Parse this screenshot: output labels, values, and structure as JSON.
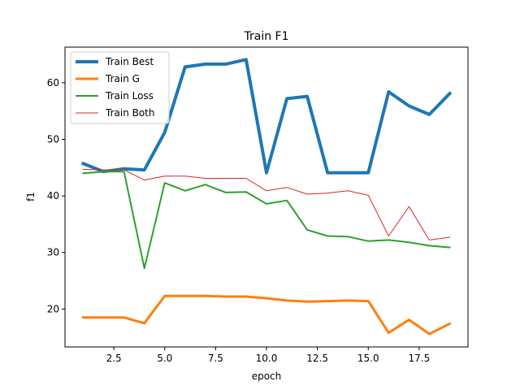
{
  "chart_data": {
    "type": "line",
    "title": "Train F1",
    "xlabel": "epoch",
    "ylabel": "f1",
    "xlim": [
      0.1,
      19.9
    ],
    "ylim": [
      13.3,
      66.3
    ],
    "xticks": [
      2.5,
      5.0,
      7.5,
      10.0,
      12.5,
      15.0,
      17.5
    ],
    "xtick_labels": [
      "2.5",
      "5.0",
      "7.5",
      "10.0",
      "12.5",
      "15.0",
      "17.5"
    ],
    "yticks": [
      20,
      30,
      40,
      50,
      60
    ],
    "ytick_labels": [
      "20",
      "30",
      "40",
      "50",
      "60"
    ],
    "grid": false,
    "legend_position": "top-left",
    "x": [
      1,
      2,
      3,
      4,
      5,
      6,
      7,
      8,
      9,
      10,
      11,
      12,
      13,
      14,
      15,
      16,
      17,
      18,
      19
    ],
    "series": [
      {
        "name": "Train Best",
        "color": "#1f77b4",
        "width": 4,
        "values": [
          45.7,
          44.3,
          44.8,
          44.6,
          51.2,
          62.8,
          63.3,
          63.3,
          64.1,
          44.1,
          57.2,
          57.6,
          44.1,
          44.1,
          44.1,
          58.4,
          55.9,
          54.4,
          58.1
        ]
      },
      {
        "name": "Train G",
        "color": "#ff7f0e",
        "width": 3,
        "values": [
          18.5,
          18.5,
          18.5,
          17.5,
          22.3,
          22.3,
          22.3,
          22.2,
          22.2,
          21.9,
          21.5,
          21.3,
          21.4,
          21.5,
          21.4,
          15.8,
          18.1,
          15.6,
          17.4
        ]
      },
      {
        "name": "Train Loss",
        "color": "#2ca02c",
        "width": 2,
        "values": [
          44.0,
          44.3,
          44.3,
          27.2,
          42.3,
          40.9,
          42.0,
          40.6,
          40.7,
          38.6,
          39.2,
          34.0,
          32.9,
          32.8,
          32.0,
          32.2,
          31.8,
          31.2,
          30.9
        ]
      },
      {
        "name": "Train Both",
        "color": "#d62728",
        "width": 1,
        "values": [
          44.7,
          44.6,
          44.6,
          42.8,
          43.5,
          43.5,
          43.1,
          43.1,
          43.1,
          40.9,
          41.5,
          40.3,
          40.5,
          40.9,
          40.1,
          32.9,
          38.1,
          32.2,
          32.7
        ]
      }
    ]
  }
}
